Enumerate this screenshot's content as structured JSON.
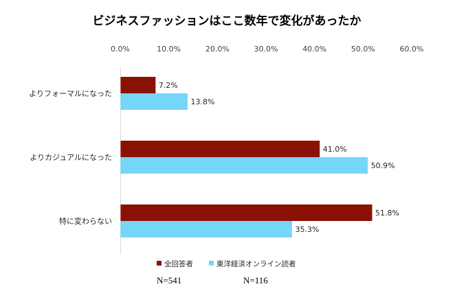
{
  "chart_data": {
    "type": "bar",
    "orientation": "horizontal",
    "title": "ビジネスファッションはここ数年で変化があったか",
    "categories": [
      "よりフォーマルになった",
      "よりカジュアルになった",
      "特に変わらない"
    ],
    "series": [
      {
        "name": "全回答者",
        "values": [
          7.2,
          41.0,
          51.8
        ],
        "color": "#8B1104"
      },
      {
        "name": "東洋経済オンライン読者",
        "values": [
          13.8,
          50.9,
          35.3
        ],
        "color": "#75D6FA"
      }
    ],
    "xlim": [
      0,
      60
    ],
    "xticks": [
      0,
      10,
      20,
      30,
      40,
      50,
      60
    ],
    "tick_format": "percent_1dp",
    "axis_position": "top",
    "legend_position": "bottom",
    "grid": false
  },
  "notes": {
    "n_all": "N=541",
    "n_readers": "N=116"
  }
}
